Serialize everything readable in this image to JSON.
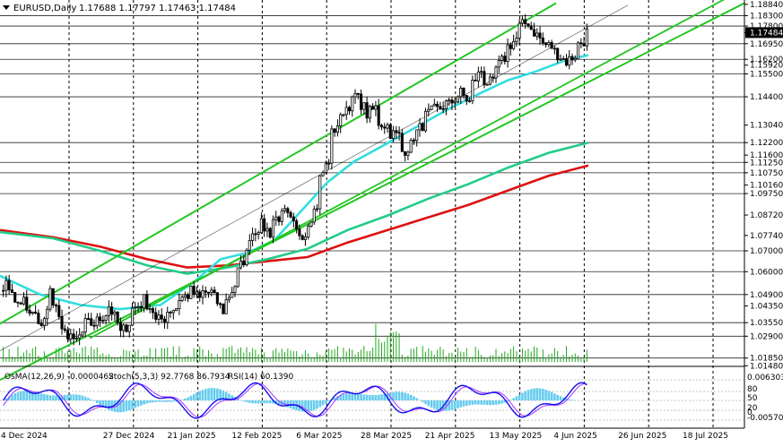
{
  "header": {
    "symbol_label": "EURUSD,Daily",
    "ohlc_label": "1.17688 1.17797 1.17463 1.17484"
  },
  "indicators": {
    "osma_label": "OsMA(12,26,9) -0.0000462",
    "stoch_label": "Stoch(5,3,3) 92.7768 86.7934",
    "rsi_label": "RSI(14) 60.1390",
    "axis_top": "0.006303",
    "axis_bottom": "-0.005702",
    "level_80": "80",
    "level_50": "50",
    "level_20": "20",
    "level_0": "0"
  },
  "colors": {
    "candle": "#000000",
    "channel": "#22c722",
    "ma_red": "#dd1111",
    "ma_green": "#22cc88",
    "ma_cyan": "#33dddd",
    "osma_hist": "#66ccee",
    "stoch_main": "#1111ee",
    "stoch_signal": "#aa33ff",
    "volume": "#22aa22"
  },
  "chart_data": {
    "type": "candlestick",
    "instrument": "EURUSD",
    "timeframe": "Daily",
    "last_close": 1.17484,
    "price_range": [
      1.0145,
      1.1905
    ],
    "price_levels": [
      "1.18840",
      "1.18300",
      "1.17800",
      "1.17484",
      "1.16950",
      "1.16200",
      "1.15920",
      "1.15500",
      "1.14400",
      "1.13040",
      "1.12200",
      "1.11600",
      "1.11250",
      "1.10750",
      "1.10160",
      "1.09750",
      "1.08720",
      "1.07740",
      "1.07000",
      "1.06000",
      "1.04900",
      "1.04350",
      "1.03550",
      "1.02900",
      "1.01850",
      "1.01480"
    ],
    "horizontal_levels": [
      1.183,
      1.178,
      1.1695,
      1.162,
      1.155,
      1.144,
      1.122,
      1.1125,
      1.1075,
      1.0975,
      1.07,
      1.06,
      1.049,
      1.0355,
      1.029,
      1.0185
    ],
    "time_labels": [
      "4 Dec 2024",
      "27 Dec 2024",
      "21 Jan 2025",
      "12 Feb 2025",
      "6 Mar 2025",
      "28 Mar 2025",
      "21 Apr 2025",
      "13 May 2025",
      "4 Jun 2025",
      "26 Jun 2025",
      "18 Jul 2025"
    ],
    "anchors": [
      [
        1.058,
        1.054
      ],
      [
        1.051,
        1.044
      ],
      [
        1.047,
        1.04
      ],
      [
        1.039,
        1.033
      ],
      [
        1.043,
        1.051
      ],
      [
        1.035,
        1.03
      ],
      [
        1.03,
        1.025
      ],
      [
        1.032,
        1.035
      ],
      [
        1.035,
        1.036
      ],
      [
        1.041,
        1.044
      ],
      [
        1.033,
        1.03
      ],
      [
        1.037,
        1.042
      ],
      [
        1.045,
        1.047
      ],
      [
        1.04,
        1.036
      ],
      [
        1.038,
        1.041
      ],
      [
        1.043,
        1.047
      ],
      [
        1.049,
        1.051
      ],
      [
        1.046,
        1.05
      ],
      [
        1.05,
        1.048
      ],
      [
        1.04,
        1.045
      ],
      [
        1.055,
        1.059
      ],
      [
        1.07,
        1.077
      ],
      [
        1.082,
        1.083
      ],
      [
        1.078,
        1.085
      ],
      [
        1.087,
        1.089
      ],
      [
        1.081,
        1.079
      ],
      [
        1.078,
        1.083
      ],
      [
        1.093,
        1.103
      ],
      [
        1.115,
        1.125
      ],
      [
        1.134,
        1.137
      ],
      [
        1.142,
        1.146
      ],
      [
        1.138,
        1.135
      ],
      [
        1.139,
        1.132
      ],
      [
        1.13,
        1.127
      ],
      [
        1.125,
        1.117
      ],
      [
        1.121,
        1.124
      ],
      [
        1.131,
        1.134
      ],
      [
        1.138,
        1.137
      ],
      [
        1.141,
        1.139
      ],
      [
        1.145,
        1.147
      ],
      [
        1.141,
        1.149
      ],
      [
        1.157,
        1.152
      ],
      [
        1.15,
        1.156
      ],
      [
        1.163,
        1.167
      ],
      [
        1.172,
        1.177
      ],
      [
        1.18,
        1.178
      ],
      [
        1.172,
        1.17
      ],
      [
        1.168,
        1.167
      ],
      [
        1.162,
        1.16
      ],
      [
        1.164,
        1.168
      ],
      [
        1.172,
        1.175
      ]
    ],
    "ma_series": [
      {
        "color": "red",
        "values": [
          [
            0,
            1.08
          ],
          [
            0.08,
            1.0765
          ],
          [
            0.15,
            1.072
          ],
          [
            0.22,
            1.066
          ],
          [
            0.28,
            1.062
          ],
          [
            0.34,
            1.063
          ],
          [
            0.4,
            1.065
          ],
          [
            0.46,
            1.067
          ],
          [
            0.52,
            1.074
          ],
          [
            0.58,
            1.08
          ],
          [
            0.64,
            1.086
          ],
          [
            0.7,
            1.092
          ],
          [
            0.76,
            1.099
          ],
          [
            0.82,
            1.106
          ],
          [
            0.88,
            1.111
          ]
        ]
      },
      {
        "color": "green",
        "values": [
          [
            0,
            1.079
          ],
          [
            0.08,
            1.076
          ],
          [
            0.15,
            1.07
          ],
          [
            0.22,
            1.063
          ],
          [
            0.28,
            1.059
          ],
          [
            0.34,
            1.062
          ],
          [
            0.4,
            1.066
          ],
          [
            0.46,
            1.071
          ],
          [
            0.52,
            1.08
          ],
          [
            0.58,
            1.087
          ],
          [
            0.64,
            1.095
          ],
          [
            0.7,
            1.102
          ],
          [
            0.76,
            1.11
          ],
          [
            0.82,
            1.117
          ],
          [
            0.88,
            1.122
          ]
        ]
      },
      {
        "color": "cyan",
        "values": [
          [
            0,
            1.058
          ],
          [
            0.06,
            1.049
          ],
          [
            0.12,
            1.044
          ],
          [
            0.18,
            1.042
          ],
          [
            0.24,
            1.044
          ],
          [
            0.29,
            1.055
          ],
          [
            0.33,
            1.066
          ],
          [
            0.37,
            1.069
          ],
          [
            0.41,
            1.075
          ],
          [
            0.45,
            1.089
          ],
          [
            0.49,
            1.103
          ],
          [
            0.53,
            1.113
          ],
          [
            0.57,
            1.12
          ],
          [
            0.62,
            1.129
          ],
          [
            0.67,
            1.138
          ],
          [
            0.72,
            1.146
          ],
          [
            0.76,
            1.152
          ],
          [
            0.8,
            1.156
          ],
          [
            0.85,
            1.162
          ],
          [
            0.88,
            1.164
          ]
        ]
      }
    ],
    "channel": {
      "lower_start": 1.008,
      "lower_end": 1.156,
      "upper_start": 1.035,
      "upper_end": 1.189,
      "outer_start": 1.02,
      "outer_end": 1.192
    }
  }
}
